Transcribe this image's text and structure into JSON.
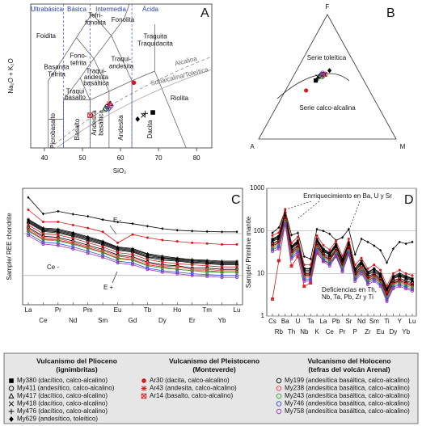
{
  "chart_data": [
    {
      "type": "scatter",
      "panel": "A",
      "xlabel": "SiO₂",
      "ylabel": "Na₂O + K₂O",
      "xlim": [
        36.4,
        84
      ],
      "ylim": [
        0,
        15
      ],
      "xticks": [
        40,
        50,
        60,
        70,
        80
      ],
      "groups": [
        "Ultrabásica",
        "Básica",
        "Intermedia",
        "Ácida"
      ],
      "fields": [
        [
          "Foidita"
        ],
        [
          "Tefri-",
          "fonolita"
        ],
        [
          "Fonolita"
        ],
        [
          "Fono-",
          "tefrita"
        ],
        [
          "Traquita",
          "Traquidacita"
        ],
        [
          "Traqui-",
          "andesita"
        ],
        [
          "Basanita",
          "Tefrita"
        ],
        [
          "Traqui-",
          "andesita",
          "basáltica"
        ],
        [
          "Traqui",
          "basalto"
        ],
        [
          "Riolita"
        ],
        [
          "Picrobasalto"
        ],
        [
          "Basalto"
        ],
        [
          "Andesita",
          "basáltica"
        ],
        [
          "Andesita"
        ],
        [
          "Dacita"
        ]
      ],
      "series_labels": [
        "Alcalina",
        "Subalcalina/Toleítica"
      ],
      "x": [
        68.5,
        56.2,
        57.3,
        66.0,
        66.5,
        64.5,
        63.5,
        57.0,
        52.0,
        56.5,
        57.0,
        56.0,
        56.8,
        57.5
      ],
      "y": [
        3.7,
        4.1,
        4.6,
        3.4,
        3.6,
        3.0,
        6.8,
        4.6,
        3.4,
        4.3,
        4.2,
        4.0,
        4.1,
        4.4
      ]
    },
    {
      "type": "ternary",
      "panel": "B",
      "vertices": [
        "F",
        "A",
        "M"
      ],
      "series_labels": [
        "Serie toleítica",
        "Serie calco-alcalina"
      ],
      "values": [
        [
          47,
          35,
          18
        ],
        [
          50,
          29,
          21
        ],
        [
          51,
          30,
          19
        ],
        [
          50,
          32,
          18
        ],
        [
          49,
          32,
          19
        ],
        [
          55,
          21,
          24
        ],
        [
          39,
          46,
          15
        ],
        [
          51,
          28,
          21
        ],
        [
          52,
          26,
          22
        ],
        [
          52,
          27,
          21
        ],
        [
          51,
          28,
          21
        ],
        [
          50,
          29,
          21
        ],
        [
          52,
          28,
          20
        ],
        [
          53,
          27,
          20
        ]
      ]
    },
    {
      "type": "line",
      "panel": "C",
      "ylabel": "Sample/ REE chondrite",
      "log_y": true,
      "ylim": [
        2,
        1200
      ],
      "gridlines": [
        10,
        100
      ],
      "annotations": [
        "E -",
        "Ce -",
        "E +"
      ],
      "categories": [
        "La",
        "Ce",
        "Pr",
        "Nd",
        "Pm",
        "Sm",
        "Eu",
        "Gd",
        "Tb",
        "Dy",
        "Ho",
        "Er",
        "Tm",
        "Yb",
        "Lu"
      ],
      "series": [
        {
          "values": [
            200,
            124,
            116,
            96,
            76,
            60,
            44,
            40,
            30,
            26,
            24,
            22,
            21,
            20,
            20
          ]
        },
        {
          "values": [
            180,
            112,
            104,
            86,
            68,
            54,
            40,
            36,
            27,
            23,
            22,
            20,
            19,
            18,
            18
          ]
        },
        {
          "values": [
            190,
            118,
            110,
            91,
            72,
            57,
            42,
            38,
            28,
            25,
            23,
            21,
            20,
            19,
            19
          ]
        },
        {
          "values": [
            210,
            130,
            122,
            101,
            80,
            63,
            46,
            42,
            32,
            27,
            25,
            23,
            22,
            21,
            21
          ]
        },
        {
          "values": [
            220,
            136,
            128,
            106,
            84,
            66,
            48,
            44,
            33,
            29,
            26,
            24,
            23,
            22,
            22
          ]
        },
        {
          "values": [
            730,
            295,
            340,
            290,
            258,
            215,
            188,
            172,
            150,
            131,
            120,
            115,
            112,
            110,
            110
          ]
        },
        {
          "values": [
            370,
            190,
            190,
            160,
            135,
            110,
            60,
            95,
            80,
            70,
            65,
            60,
            58,
            55,
            55
          ]
        },
        {
          "values": [
            160,
            99,
            93,
            77,
            61,
            48,
            35,
            32,
            24,
            21,
            19,
            18,
            17,
            16,
            16
          ]
        },
        {
          "values": [
            120,
            74,
            70,
            58,
            46,
            36,
            26,
            24,
            18,
            16,
            14,
            13,
            13,
            12,
            12
          ]
        },
        {
          "values": [
            140,
            87,
            81,
            67,
            53,
            42,
            31,
            28,
            21,
            18,
            17,
            15,
            15,
            14,
            14
          ]
        },
        {
          "values": [
            130,
            81,
            75,
            62,
            49,
            39,
            29,
            26,
            20,
            17,
            16,
            14,
            14,
            13,
            13
          ]
        },
        {
          "values": [
            115,
            71,
            67,
            55,
            44,
            35,
            25,
            23,
            17,
            15,
            14,
            13,
            12,
            12,
            12
          ]
        },
        {
          "values": [
            100,
            62,
            58,
            48,
            38,
            30,
            22,
            20,
            15,
            13,
            12,
            11,
            10.5,
            10,
            10
          ]
        },
        {
          "values": [
            90,
            56,
            52,
            43,
            34,
            27,
            20,
            18,
            14,
            12,
            11,
            10,
            9.5,
            9,
            9
          ]
        }
      ]
    },
    {
      "type": "line",
      "panel": "D",
      "ylabel": "Sample/ Primitive mantle",
      "log_y": true,
      "ylim": [
        1,
        1000
      ],
      "yticks": [
        1,
        10,
        100,
        1000
      ],
      "annotation": "Enrriquecimiento en Ba, U y Sr",
      "annotation_lines": [
        "Deficiencias en Th,",
        "Nb, Ta, Pb, Zr y Ti"
      ],
      "categories": [
        "Cs",
        "Rb",
        "Ba",
        "Th",
        "U",
        "Nb",
        "Ta",
        "K",
        "La",
        "Ce",
        "Pb",
        "Pr",
        "Sr",
        "P",
        "Nd",
        "Zr",
        "Sm",
        "Eu",
        "Ti",
        "Dy",
        "Y",
        "Yb",
        "Lu"
      ],
      "series": [
        {
          "values": [
            60,
            70,
            250,
            40,
            55,
            12,
            12,
            60,
            35,
            28,
            45,
            20,
            50,
            12,
            18,
            10,
            12,
            9,
            4,
            8,
            9,
            8,
            7
          ]
        },
        {
          "values": [
            51,
            60,
            212,
            34,
            47,
            10,
            10,
            51,
            30,
            24,
            38,
            17,
            42,
            10,
            15,
            8.5,
            10,
            7.7,
            3.4,
            6.8,
            7.7,
            6.8,
            6
          ]
        },
        {
          "values": [
            57,
            66,
            238,
            38,
            52,
            11,
            11,
            57,
            33,
            27,
            43,
            19,
            48,
            11,
            17,
            9.5,
            11,
            8.6,
            3.8,
            7.6,
            8.6,
            7.6,
            6.7
          ]
        },
        {
          "values": [
            63,
            74,
            262,
            42,
            58,
            13,
            13,
            63,
            37,
            29,
            47,
            21,
            52,
            13,
            19,
            10.5,
            13,
            9.5,
            4.2,
            8.4,
            9.5,
            8.4,
            7.4
          ]
        },
        {
          "values": [
            66,
            77,
            275,
            44,
            60,
            13,
            13,
            66,
            38,
            31,
            50,
            22,
            55,
            13,
            20,
            11,
            13,
            10,
            4.4,
            8.8,
            10,
            8.8,
            7.7
          ]
        },
        {
          "values": [
            90,
            120,
            300,
            80,
            90,
            25,
            22,
            110,
            100,
            85,
            60,
            70,
            110,
            28,
            65,
            55,
            45,
            35,
            18,
            38,
            55,
            50,
            55
          ]
        },
        {
          "values": [
            78,
            91,
            325,
            52,
            72,
            16,
            16,
            78,
            46,
            36,
            58,
            26,
            65,
            16,
            23,
            13,
            16,
            12,
            5.2,
            10,
            12,
            10,
            9
          ]
        },
        {
          "values": [
            48,
            56,
            200,
            32,
            44,
            9.6,
            9.6,
            48,
            28,
            22,
            36,
            16,
            40,
            9.6,
            14,
            8,
            9.6,
            7.2,
            3.2,
            6.4,
            7.2,
            6.4,
            5.6
          ]
        },
        {
          "values": [
            2.5,
            20,
            150,
            15,
            25,
            5,
            6,
            30,
            20,
            17,
            25,
            12,
            40,
            8,
            12,
            7,
            8,
            6,
            3.5,
            6,
            6.5,
            5.5,
            5
          ]
        },
        {
          "values": [
            45,
            52,
            188,
            30,
            41,
            9,
            9,
            45,
            26,
            21,
            34,
            15,
            38,
            9,
            13,
            7.5,
            9,
            6.8,
            3,
            6,
            6.8,
            6,
            5.3
          ]
        },
        {
          "values": [
            42,
            49,
            175,
            28,
            38,
            8.4,
            8.4,
            42,
            24,
            20,
            32,
            14,
            35,
            8.4,
            13,
            7,
            8.4,
            6.3,
            2.8,
            5.6,
            6.3,
            5.6,
            4.9
          ]
        },
        {
          "values": [
            39,
            45,
            162,
            26,
            36,
            7.8,
            7.8,
            39,
            23,
            18,
            29,
            13,
            33,
            7.8,
            12,
            6.5,
            7.8,
            5.9,
            2.6,
            5.2,
            5.9,
            5.2,
            4.6
          ]
        },
        {
          "values": [
            36,
            42,
            150,
            24,
            33,
            7.2,
            7.2,
            36,
            21,
            17,
            27,
            12,
            30,
            7.2,
            11,
            6,
            7.2,
            5.4,
            2.4,
            4.8,
            5.4,
            4.8,
            4.2
          ]
        },
        {
          "values": [
            33,
            38,
            138,
            22,
            30,
            6.6,
            6.6,
            33,
            19,
            15,
            25,
            11,
            28,
            6.6,
            9.9,
            5.5,
            6.6,
            5,
            2.2,
            4.4,
            5,
            4.4,
            3.9
          ]
        }
      ]
    }
  ],
  "legend": {
    "groups": [
      {
        "title": [
          "Vulcanismo del Plioceno",
          "(ignimbritas)"
        ],
        "entries": [
          {
            "label": "My380 (dacítico, calco-alcalino)",
            "marker": "square",
            "color": "#000000"
          },
          {
            "label": "My411 (andesítico, calco-alcalino)",
            "marker": "circle",
            "color": "#000000"
          },
          {
            "label": "My417 (dacítico, calco-alcalino)",
            "marker": "triangle",
            "color": "#000000"
          },
          {
            "label": "My418 (dacítico, calco-alcalino)",
            "marker": "x",
            "color": "#000000"
          },
          {
            "label": "My476 (dacítico, calco-alcalino)",
            "marker": "plus",
            "color": "#000000"
          },
          {
            "label": "My629 (andesítico, toleítico)",
            "marker": "diamond",
            "color": "#000000"
          }
        ]
      },
      {
        "title": [
          "Vulcanismo del Pleistoceno",
          "(Monteverde)"
        ],
        "entries": [
          {
            "label": "Ar30 (dacita, calco-alcalino)",
            "marker": "dot",
            "color": "#d7191c"
          },
          {
            "label": "Ar43 (andesita, calco-alcalino)",
            "marker": "asterisk",
            "color": "#d7191c"
          },
          {
            "label": "Ar14 (basalto, calco-alcalino)",
            "marker": "boxx",
            "color": "#d7191c"
          }
        ]
      },
      {
        "title": [
          "Vulcanismo del Holoceno",
          "(tefras del volcán Arenal)"
        ],
        "entries": [
          {
            "label": "My199 (andesítica basáltica, calco-alcalino)",
            "marker": "circle",
            "color": "#000000"
          },
          {
            "label": "My238 (andesítica basáltica, calco-alcalino)",
            "marker": "circle",
            "color": "#e8413c"
          },
          {
            "label": "My243 (andesítica basáltica, calco-alcalino)",
            "marker": "circle",
            "color": "#34a02c"
          },
          {
            "label": "My746 (andesítica basáltica, calco-alcalino)",
            "marker": "circle",
            "color": "#2d4fd8"
          },
          {
            "label": "My758 (andesítica basáltica, calco-alcalino)",
            "marker": "circle",
            "color": "#9a37b8"
          }
        ]
      }
    ]
  }
}
